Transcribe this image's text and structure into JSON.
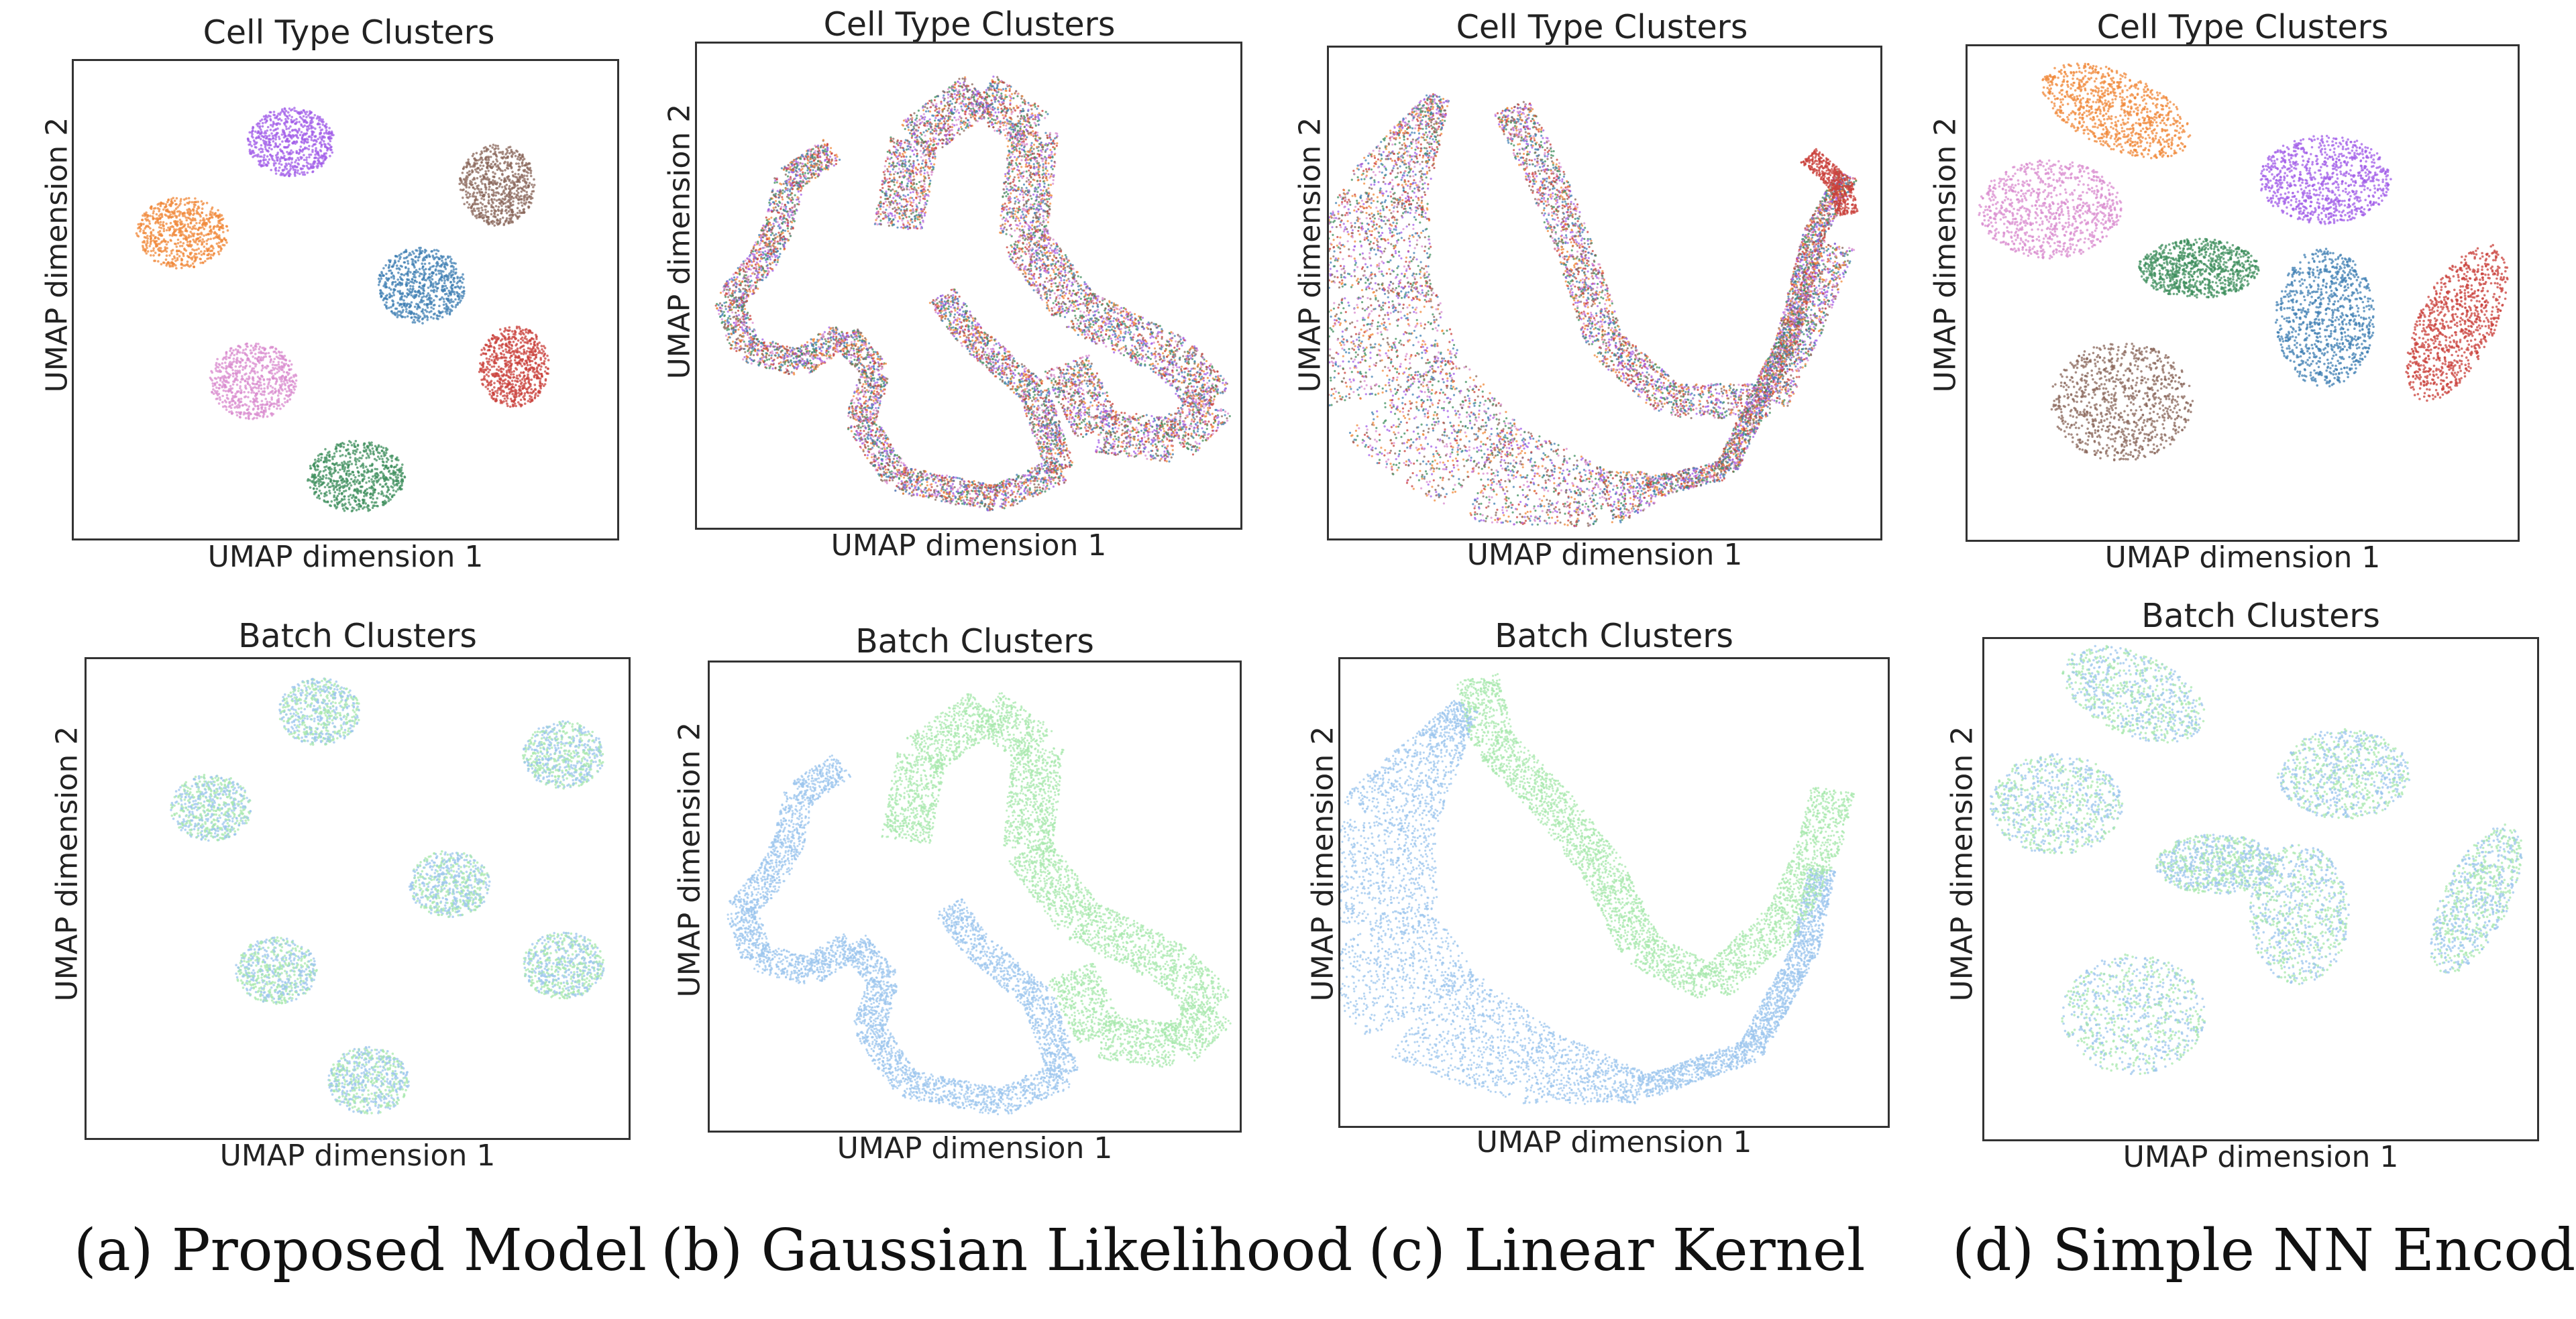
{
  "labels": {
    "cell_title": "Cell Type Clusters",
    "batch_title": "Batch Clusters",
    "xlabel": "UMAP dimension 1",
    "ylabel": "UMAP dimension 2"
  },
  "captions": [
    "(a) Proposed Model",
    "(b) Gaussian Likelihood",
    "(c) Linear Kernel",
    "(d) Simple NN Encoder"
  ],
  "colors": {
    "cell_types": [
      "#f0883a",
      "#a25ee8",
      "#8a675b",
      "#3f7fb3",
      "#c9403b",
      "#d98ccf",
      "#3f8f5e"
    ],
    "batches": [
      "#9cc5ee",
      "#a8e8ad"
    ]
  },
  "chart_data": [
    {
      "type": "scatter",
      "title": "Cell Type Clusters",
      "xlabel": "UMAP dimension 1",
      "ylabel": "UMAP dimension 2",
      "model": "(a) Proposed Model",
      "color_by": "cell_type",
      "grid": false,
      "layout": "seven compact blobs"
    },
    {
      "type": "scatter",
      "title": "Cell Type Clusters",
      "xlabel": "UMAP dimension 1",
      "ylabel": "UMAP dimension 2",
      "model": "(b) Gaussian Likelihood",
      "color_by": "cell_type",
      "grid": false,
      "layout": "two intertwined ribbons with all cell types mixed"
    },
    {
      "type": "scatter",
      "title": "Cell Type Clusters",
      "xlabel": "UMAP dimension 1",
      "ylabel": "UMAP dimension 2",
      "model": "(c) Linear Kernel",
      "color_by": "cell_type",
      "grid": false,
      "layout": "curved overlapping bands"
    },
    {
      "type": "scatter",
      "title": "Cell Type Clusters",
      "xlabel": "UMAP dimension 1",
      "ylabel": "UMAP dimension 2",
      "model": "(d) Simple NN Encoder",
      "color_by": "cell_type",
      "grid": false,
      "layout": "seven separated irregular clusters"
    },
    {
      "type": "scatter",
      "title": "Batch Clusters",
      "xlabel": "UMAP dimension 1",
      "ylabel": "UMAP dimension 2",
      "model": "(a) Proposed Model",
      "color_by": "batch",
      "grid": false,
      "layout": "two batches mixed within each blob"
    },
    {
      "type": "scatter",
      "title": "Batch Clusters",
      "xlabel": "UMAP dimension 1",
      "ylabel": "UMAP dimension 2",
      "model": "(b) Gaussian Likelihood",
      "color_by": "batch",
      "grid": false,
      "layout": "batches separated into two ribbons"
    },
    {
      "type": "scatter",
      "title": "Batch Clusters",
      "xlabel": "UMAP dimension 1",
      "ylabel": "UMAP dimension 2",
      "model": "(c) Linear Kernel",
      "color_by": "batch",
      "grid": false,
      "layout": "batches separated into two bands"
    },
    {
      "type": "scatter",
      "title": "Batch Clusters",
      "xlabel": "UMAP dimension 1",
      "ylabel": "UMAP dimension 2",
      "model": "(d) Simple NN Encoder",
      "color_by": "batch",
      "grid": false,
      "layout": "two batches mixed within each cluster"
    }
  ]
}
